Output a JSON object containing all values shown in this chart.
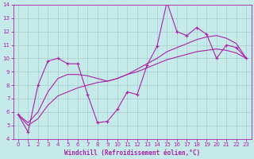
{
  "xlabel": "Windchill (Refroidissement éolien,°C)",
  "xlim": [
    -0.5,
    23.5
  ],
  "ylim": [
    4,
    14
  ],
  "xticks": [
    0,
    1,
    2,
    3,
    4,
    5,
    6,
    7,
    8,
    9,
    10,
    11,
    12,
    13,
    14,
    15,
    16,
    17,
    18,
    19,
    20,
    21,
    22,
    23
  ],
  "yticks": [
    4,
    5,
    6,
    7,
    8,
    9,
    10,
    11,
    12,
    13,
    14
  ],
  "bg_color": "#c6eaea",
  "grid_color": "#a8cccc",
  "line_color": "#aa22aa",
  "line1_x": [
    0,
    1,
    2,
    3,
    4,
    5,
    6,
    7,
    8,
    9,
    10,
    11,
    12,
    13,
    14,
    15,
    16,
    17,
    18,
    19,
    20,
    21,
    22,
    23
  ],
  "line1_y": [
    5.8,
    4.5,
    8.0,
    9.8,
    10.0,
    9.6,
    9.6,
    7.3,
    5.2,
    5.3,
    6.2,
    7.5,
    7.3,
    9.5,
    10.9,
    14.2,
    12.0,
    11.7,
    12.3,
    11.8,
    10.0,
    11.0,
    10.8,
    10.0
  ],
  "line2_x": [
    0,
    1,
    2,
    3,
    4,
    5,
    6,
    7,
    8,
    9,
    10,
    11,
    12,
    13,
    14,
    15,
    16,
    17,
    18,
    19,
    20,
    21,
    22,
    23
  ],
  "line2_y": [
    5.8,
    5.2,
    6.0,
    7.5,
    8.5,
    8.8,
    8.8,
    8.7,
    8.5,
    8.3,
    8.5,
    8.8,
    9.2,
    9.6,
    10.0,
    10.5,
    10.8,
    11.1,
    11.4,
    11.6,
    11.7,
    11.5,
    11.1,
    10.0
  ],
  "line3_x": [
    0,
    1,
    2,
    3,
    4,
    5,
    6,
    7,
    8,
    9,
    10,
    11,
    12,
    13,
    14,
    15,
    16,
    17,
    18,
    19,
    20,
    21,
    22,
    23
  ],
  "line3_y": [
    5.8,
    5.0,
    5.5,
    6.5,
    7.2,
    7.5,
    7.8,
    8.0,
    8.2,
    8.3,
    8.5,
    8.8,
    9.0,
    9.3,
    9.6,
    9.9,
    10.1,
    10.3,
    10.5,
    10.6,
    10.7,
    10.6,
    10.4,
    10.0
  ]
}
